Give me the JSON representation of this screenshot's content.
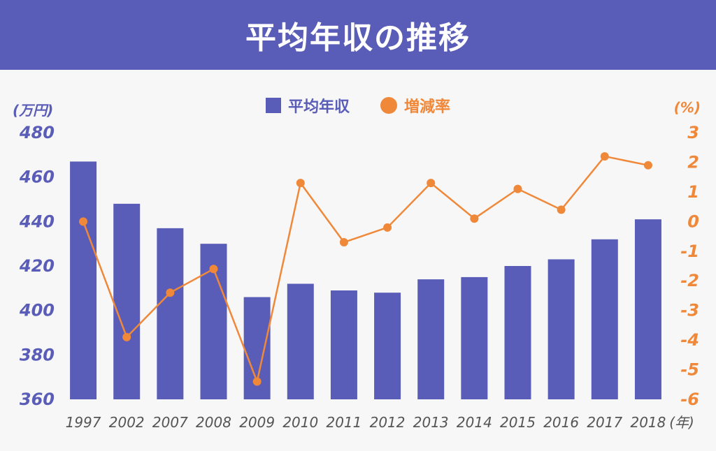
{
  "header": {
    "title": "平均年収の推移"
  },
  "legend": {
    "bar_label": "平均年収",
    "line_label": "増減率"
  },
  "axes": {
    "left_unit": "(万円)",
    "right_unit": "(%)",
    "x_unit": "(年)"
  },
  "colors": {
    "bar": "#5a5db8",
    "line": "#f0883a",
    "header": "#5a5db8"
  },
  "chart_data": {
    "type": "bar",
    "categories": [
      "1997",
      "2002",
      "2007",
      "2008",
      "2009",
      "2010",
      "2011",
      "2012",
      "2013",
      "2014",
      "2015",
      "2016",
      "2017",
      "2018"
    ],
    "series": [
      {
        "name": "平均年収",
        "type": "bar",
        "axis": "left",
        "values": [
          467,
          448,
          437,
          430,
          406,
          412,
          409,
          408,
          414,
          415,
          420,
          423,
          432,
          441
        ]
      },
      {
        "name": "増減率",
        "type": "line",
        "axis": "right",
        "values": [
          0.0,
          -3.9,
          -2.4,
          -1.6,
          -5.4,
          1.3,
          -0.7,
          -0.2,
          1.3,
          0.1,
          1.1,
          0.4,
          2.2,
          1.9
        ]
      }
    ],
    "y_left": {
      "ylim": [
        360,
        480
      ],
      "ticks": [
        480,
        460,
        440,
        420,
        400,
        380,
        360
      ]
    },
    "y_right": {
      "ylim": [
        -6,
        3
      ],
      "ticks": [
        3,
        2,
        1,
        0,
        -1,
        -2,
        -3,
        -4,
        -5,
        -6
      ]
    }
  }
}
